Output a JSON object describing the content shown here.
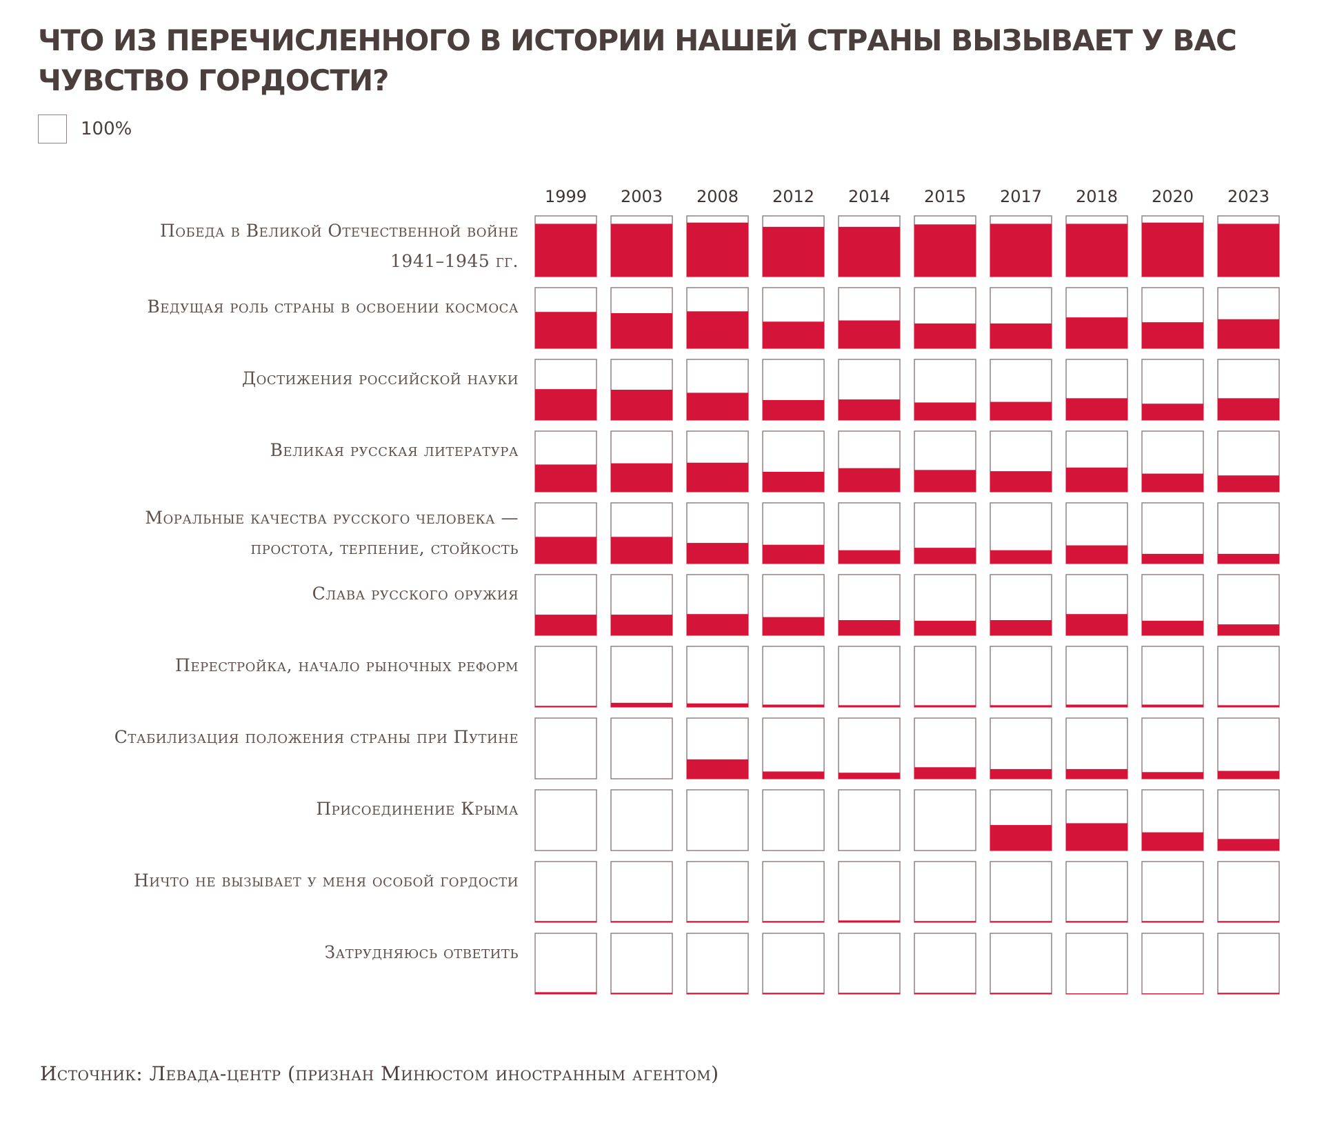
{
  "title": "Что из перечисленного в истории нашей страны вызывает у вас чувство гордости?",
  "legend": {
    "label": "100%"
  },
  "source": "Источник: Левада-центр  (признан Минюстом иностранным агентом)",
  "chart_data": {
    "type": "table",
    "years": [
      "1999",
      "2003",
      "2008",
      "2012",
      "2014",
      "2015",
      "2017",
      "2018",
      "2020",
      "2023"
    ],
    "unit": "%",
    "max": 100,
    "rows": [
      {
        "label_lines": [
          "Победа в Великой Отечественной войне",
          "1941–1945 гг."
        ],
        "values": [
          87,
          87,
          89,
          82,
          82,
          86,
          87,
          87,
          89,
          87
        ]
      },
      {
        "label_lines": [
          "Ведущая роль страны в освоении космоса"
        ],
        "values": [
          60,
          58,
          61,
          44,
          46,
          41,
          41,
          51,
          43,
          48
        ]
      },
      {
        "label_lines": [
          "Достижения российской науки"
        ],
        "values": [
          51,
          50,
          45,
          33,
          34,
          29,
          30,
          36,
          27,
          36
        ]
      },
      {
        "label_lines": [
          "Великая русская литература"
        ],
        "values": [
          45,
          47,
          48,
          33,
          39,
          36,
          34,
          40,
          30,
          27
        ]
      },
      {
        "label_lines": [
          "Моральные качества русского человека —",
          "простота, терпение, стойкость"
        ],
        "values": [
          44,
          44,
          34,
          31,
          22,
          26,
          22,
          30,
          16,
          16
        ]
      },
      {
        "label_lines": [
          "Слава русского оружия"
        ],
        "values": [
          34,
          34,
          35,
          30,
          25,
          24,
          25,
          35,
          24,
          18
        ]
      },
      {
        "label_lines": [
          "Перестройка, начало рыночных реформ"
        ],
        "values": [
          2,
          7,
          6,
          4,
          3,
          3,
          3,
          4,
          4,
          3
        ]
      },
      {
        "label_lines": [
          "Стабилизация положения страны при Путине"
        ],
        "values": [
          0,
          0,
          32,
          12,
          10,
          19,
          16,
          16,
          11,
          13
        ]
      },
      {
        "label_lines": [
          "Присоединение Крыма"
        ],
        "values": [
          0,
          0,
          0,
          0,
          0,
          0,
          42,
          45,
          30,
          19
        ]
      },
      {
        "label_lines": [
          "Ничто не вызывает у меня особой гордости"
        ],
        "values": [
          2,
          2,
          2,
          2,
          3,
          2,
          2,
          2,
          2,
          2
        ]
      },
      {
        "label_lines": [
          "Затрудняюсь ответить"
        ],
        "values": [
          3,
          2,
          2,
          2,
          2,
          2,
          2,
          1,
          1,
          2
        ]
      }
    ]
  }
}
